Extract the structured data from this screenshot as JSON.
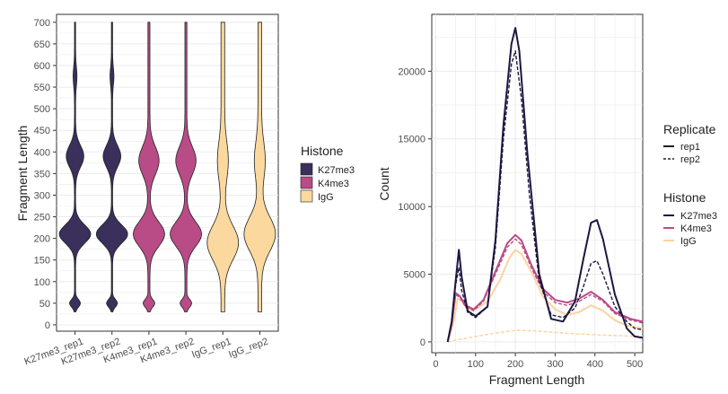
{
  "chart_data": [
    {
      "type": "violin",
      "ylabel": "Fragment Length",
      "xlabel": "",
      "ylim": [
        0,
        700
      ],
      "yticks": [
        0,
        50,
        100,
        150,
        200,
        250,
        300,
        350,
        400,
        450,
        500,
        550,
        600,
        650,
        700
      ],
      "grid": true,
      "legend": {
        "title": "Histone",
        "placement": "right",
        "entries": [
          {
            "label": "K27me3",
            "color": "#3b2f5c"
          },
          {
            "label": "K4me3",
            "color": "#b94b86"
          },
          {
            "label": "IgG",
            "color": "#fbd89e"
          }
        ]
      },
      "categories": [
        "K27me3_rep1",
        "K27me3_rep2",
        "K4me3_rep1",
        "K4me3_rep2",
        "IgG_rep1",
        "IgG_rep2"
      ],
      "groups": [
        "K27me3",
        "K27me3",
        "K4me3",
        "K4me3",
        "IgG",
        "IgG"
      ],
      "min": [
        30,
        30,
        30,
        30,
        30,
        30
      ],
      "max": [
        700,
        700,
        700,
        700,
        700,
        700
      ],
      "modes": [
        210,
        210,
        210,
        210,
        190,
        210
      ]
    },
    {
      "type": "line",
      "xlabel": "Fragment Length",
      "ylabel": "Count",
      "xlim": [
        -10,
        520
      ],
      "ylim": [
        -800,
        24200
      ],
      "xticks": [
        0,
        100,
        200,
        300,
        400,
        500
      ],
      "yticks": [
        0,
        5000,
        10000,
        15000,
        20000
      ],
      "grid": true,
      "legend": [
        {
          "title": "Replicate",
          "placement": "right",
          "entries": [
            {
              "label": "rep1",
              "style": "solid"
            },
            {
              "label": "rep2",
              "style": "dashed"
            }
          ]
        },
        {
          "title": "Histone",
          "placement": "right",
          "entries": [
            {
              "label": "K27me3",
              "color": "#1d1740"
            },
            {
              "label": "K4me3",
              "color": "#b94b86"
            },
            {
              "label": "IgG",
              "color": "#fbd3a0"
            }
          ]
        }
      ],
      "series": [
        {
          "group": "IgG",
          "replicate": "rep2",
          "points": [
            [
              30,
              0
            ],
            [
              60,
              200
            ],
            [
              100,
              400
            ],
            [
              150,
              650
            ],
            [
              200,
              850
            ],
            [
              250,
              820
            ],
            [
              300,
              700
            ],
            [
              350,
              600
            ],
            [
              400,
              520
            ],
            [
              450,
              470
            ],
            [
              500,
              420
            ],
            [
              520,
              400
            ]
          ]
        },
        {
          "group": "IgG",
          "replicate": "rep1",
          "points": [
            [
              30,
              0
            ],
            [
              45,
              1500
            ],
            [
              55,
              3200
            ],
            [
              65,
              3000
            ],
            [
              80,
              2400
            ],
            [
              100,
              2400
            ],
            [
              130,
              3000
            ],
            [
              160,
              4500
            ],
            [
              185,
              6200
            ],
            [
              200,
              6800
            ],
            [
              215,
              6500
            ],
            [
              240,
              5200
            ],
            [
              270,
              3300
            ],
            [
              300,
              2400
            ],
            [
              330,
              2000
            ],
            [
              360,
              2200
            ],
            [
              390,
              2700
            ],
            [
              420,
              2300
            ],
            [
              450,
              1600
            ],
            [
              480,
              1200
            ],
            [
              520,
              1000
            ]
          ]
        },
        {
          "group": "K4me3",
          "replicate": "rep2",
          "points": [
            [
              30,
              0
            ],
            [
              40,
              1200
            ],
            [
              50,
              3500
            ],
            [
              60,
              3300
            ],
            [
              75,
              2600
            ],
            [
              95,
              2300
            ],
            [
              120,
              3000
            ],
            [
              150,
              5000
            ],
            [
              180,
              7000
            ],
            [
              200,
              7600
            ],
            [
              215,
              7200
            ],
            [
              240,
              5500
            ],
            [
              270,
              3700
            ],
            [
              300,
              2900
            ],
            [
              330,
              2700
            ],
            [
              360,
              3000
            ],
            [
              390,
              3500
            ],
            [
              420,
              3000
            ],
            [
              450,
              2100
            ],
            [
              490,
              1600
            ],
            [
              520,
              1400
            ]
          ]
        },
        {
          "group": "K4me3",
          "replicate": "rep1",
          "points": [
            [
              30,
              0
            ],
            [
              40,
              1300
            ],
            [
              50,
              3600
            ],
            [
              60,
              3400
            ],
            [
              75,
              2700
            ],
            [
              95,
              2400
            ],
            [
              120,
              3100
            ],
            [
              150,
              5200
            ],
            [
              180,
              7300
            ],
            [
              200,
              7900
            ],
            [
              215,
              7500
            ],
            [
              240,
              5700
            ],
            [
              270,
              3900
            ],
            [
              300,
              3100
            ],
            [
              330,
              2900
            ],
            [
              360,
              3200
            ],
            [
              390,
              3700
            ],
            [
              420,
              3100
            ],
            [
              450,
              2200
            ],
            [
              490,
              1700
            ],
            [
              520,
              1500
            ]
          ]
        },
        {
          "group": "K27me3",
          "replicate": "rep2",
          "points": [
            [
              30,
              0
            ],
            [
              40,
              1500
            ],
            [
              50,
              4200
            ],
            [
              58,
              5500
            ],
            [
              65,
              3800
            ],
            [
              80,
              2200
            ],
            [
              100,
              1800
            ],
            [
              130,
              2600
            ],
            [
              150,
              7000
            ],
            [
              170,
              15000
            ],
            [
              190,
              20500
            ],
            [
              200,
              21500
            ],
            [
              215,
              18000
            ],
            [
              235,
              11000
            ],
            [
              260,
              4500
            ],
            [
              290,
              2000
            ],
            [
              320,
              1800
            ],
            [
              350,
              2500
            ],
            [
              370,
              4000
            ],
            [
              390,
              5800
            ],
            [
              405,
              6000
            ],
            [
              420,
              5000
            ],
            [
              450,
              2600
            ],
            [
              480,
              1500
            ],
            [
              500,
              1000
            ],
            [
              520,
              900
            ]
          ]
        },
        {
          "group": "K27me3",
          "replicate": "rep1",
          "points": [
            [
              30,
              0
            ],
            [
              40,
              1500
            ],
            [
              50,
              4500
            ],
            [
              58,
              6800
            ],
            [
              65,
              4800
            ],
            [
              80,
              2300
            ],
            [
              100,
              1900
            ],
            [
              130,
              2600
            ],
            [
              150,
              7500
            ],
            [
              170,
              16000
            ],
            [
              190,
              22000
            ],
            [
              200,
              23200
            ],
            [
              210,
              21500
            ],
            [
              230,
              14000
            ],
            [
              260,
              5000
            ],
            [
              290,
              1700
            ],
            [
              320,
              1500
            ],
            [
              350,
              3000
            ],
            [
              370,
              6000
            ],
            [
              390,
              8800
            ],
            [
              405,
              9000
            ],
            [
              420,
              7600
            ],
            [
              450,
              3500
            ],
            [
              480,
              1000
            ],
            [
              500,
              400
            ],
            [
              520,
              300
            ]
          ]
        }
      ]
    }
  ]
}
